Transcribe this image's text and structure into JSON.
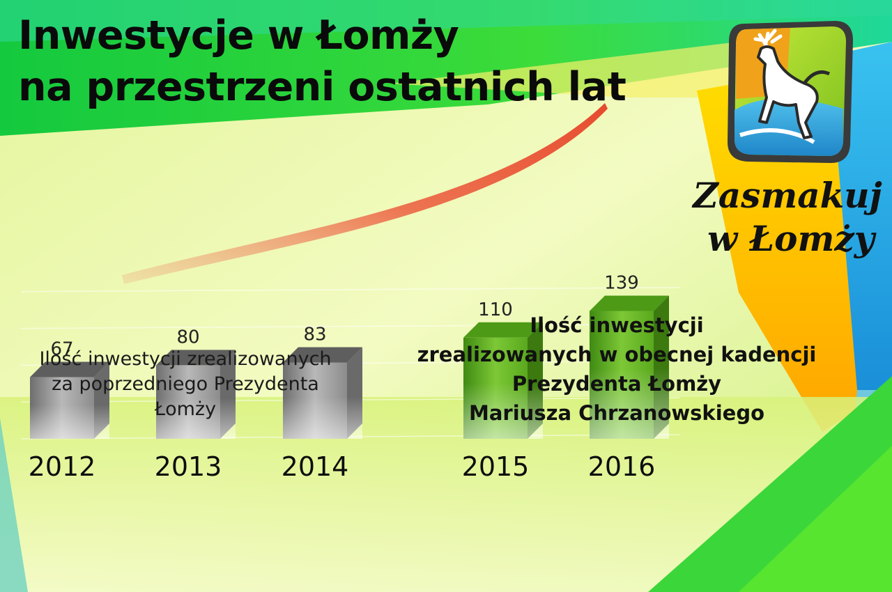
{
  "slide": {
    "title_lines": [
      "Inwestycje w Łomży",
      "na przestrzeni ostatnich lat"
    ],
    "caption_previous": [
      "Ilość inwestycji zrealizowanych",
      "za poprzedniego Prezydenta",
      "Łomży"
    ],
    "caption_current": [
      "Ilość inwestycji",
      "zrealizowanych w obecnej kadencji",
      "Prezydenta Łomży",
      "Mariusza Chrzanowskiego"
    ],
    "brand_lines": [
      "Zasmakuj",
      "w Łomży"
    ],
    "logo_icon": "deer-emblem-icon"
  },
  "colors": {
    "previous_term_bars": "#8a8a8a",
    "current_term_bars": "#5aa81e",
    "trend_arrow": "#e8503a",
    "top_band": "#22d04a"
  },
  "chart_data": {
    "type": "bar",
    "title": "Inwestycje w Łomży na przestrzeni ostatnich lat",
    "categories": [
      "2012",
      "2013",
      "2014",
      "2015",
      "2016"
    ],
    "values": [
      67,
      80,
      83,
      110,
      139
    ],
    "groups": [
      {
        "label": "Ilość inwestycji zrealizowanych za poprzedniego Prezydenta Łomży",
        "categories": [
          "2012",
          "2013",
          "2014"
        ]
      },
      {
        "label": "Ilość inwestycji zrealizowanych w obecnej kadencji Prezydenta Łomży Mariusza Chrzanowskiego",
        "categories": [
          "2015",
          "2016"
        ]
      }
    ],
    "data_labels": true,
    "ylim": [
      0,
      160
    ],
    "grid": true,
    "style": "3d-columns"
  }
}
